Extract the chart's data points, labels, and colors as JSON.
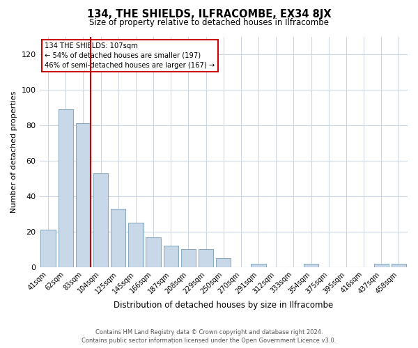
{
  "title": "134, THE SHIELDS, ILFRACOMBE, EX34 8JX",
  "subtitle": "Size of property relative to detached houses in Ilfracombe",
  "xlabel": "Distribution of detached houses by size in Ilfracombe",
  "ylabel": "Number of detached properties",
  "bar_labels": [
    "41sqm",
    "62sqm",
    "83sqm",
    "104sqm",
    "125sqm",
    "145sqm",
    "166sqm",
    "187sqm",
    "208sqm",
    "229sqm",
    "250sqm",
    "270sqm",
    "291sqm",
    "312sqm",
    "333sqm",
    "354sqm",
    "375sqm",
    "395sqm",
    "416sqm",
    "437sqm",
    "458sqm"
  ],
  "bar_values": [
    21,
    89,
    81,
    53,
    33,
    25,
    17,
    12,
    10,
    10,
    5,
    0,
    2,
    0,
    0,
    2,
    0,
    0,
    0,
    2,
    2
  ],
  "bar_color": "#c8d8e8",
  "bar_edge_color": "#8aabbf",
  "highlight_index": 2,
  "highlight_line_color": "#cc0000",
  "ylim": [
    0,
    130
  ],
  "yticks": [
    0,
    20,
    40,
    60,
    80,
    100,
    120
  ],
  "annotation_title": "134 THE SHIELDS: 107sqm",
  "annotation_line1": "← 54% of detached houses are smaller (197)",
  "annotation_line2": "46% of semi-detached houses are larger (167) →",
  "annotation_box_color": "#ffffff",
  "annotation_box_edge": "#cc0000",
  "footer_line1": "Contains HM Land Registry data © Crown copyright and database right 2024.",
  "footer_line2": "Contains public sector information licensed under the Open Government Licence v3.0.",
  "background_color": "#ffffff",
  "grid_color": "#ccd8e4"
}
